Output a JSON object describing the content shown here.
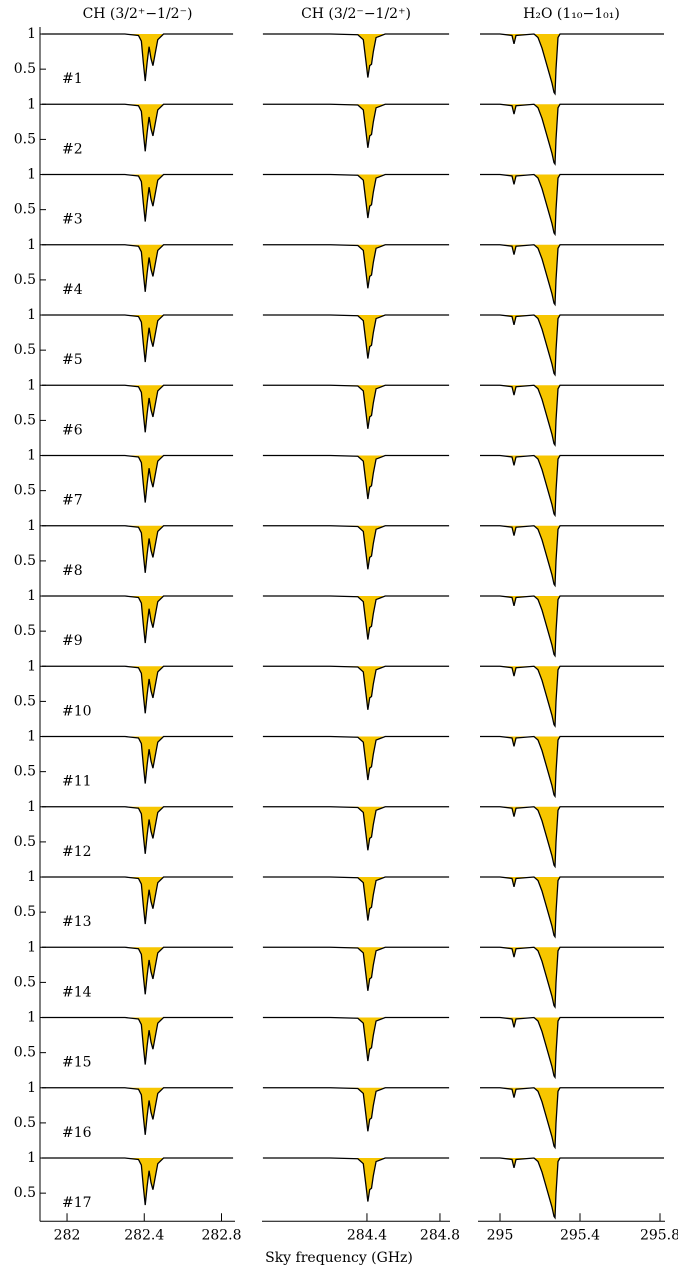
{
  "chart_data": {
    "type": "line",
    "x_label": "Sky frequency (GHz)",
    "line_color": "#000000",
    "fill_color": "#f7c600",
    "ylim": [
      0.1,
      1.1
    ],
    "yticks": [
      0.5,
      1
    ],
    "rows": [
      "#1",
      "#2",
      "#3",
      "#4",
      "#5",
      "#6",
      "#7",
      "#8",
      "#9",
      "#10",
      "#11",
      "#12",
      "#13",
      "#14",
      "#15",
      "#16",
      "#17"
    ],
    "columns": [
      {
        "title": "CH (3/2⁺−1/2⁻)",
        "xlim": [
          281.86,
          282.87
        ],
        "xticks": [
          282,
          282.4,
          282.8
        ],
        "x": [
          281.87,
          282.0,
          282.1,
          282.2,
          282.3,
          282.37,
          282.385,
          282.395,
          282.405,
          282.415,
          282.425,
          282.435,
          282.445,
          282.455,
          282.47,
          282.5,
          282.6,
          282.7,
          282.86
        ],
        "values": [
          1,
          1,
          1,
          1,
          1,
          0.98,
          0.9,
          0.6,
          0.33,
          0.6,
          0.82,
          0.65,
          0.55,
          0.7,
          0.92,
          1,
          1,
          1,
          1
        ]
      },
      {
        "title": "CH (3/2⁻−1/2⁺)",
        "xlim": [
          283.825,
          284.855
        ],
        "xticks": [
          284.4,
          284.8
        ],
        "x": [
          283.83,
          284.0,
          284.2,
          284.35,
          284.38,
          284.395,
          284.405,
          284.415,
          284.425,
          284.435,
          284.45,
          284.5,
          284.6,
          284.7,
          284.85
        ],
        "values": [
          1,
          1,
          1,
          0.99,
          0.92,
          0.6,
          0.38,
          0.55,
          0.57,
          0.75,
          0.95,
          1,
          1,
          1,
          1
        ]
      },
      {
        "title": "H₂O (1₁₀−1₀₁)",
        "xlim": [
          294.89,
          295.825
        ],
        "xticks": [
          295,
          295.4,
          295.8
        ],
        "x": [
          294.9,
          295.0,
          295.06,
          295.07,
          295.08,
          295.17,
          295.19,
          295.21,
          295.23,
          295.25,
          295.26,
          295.27,
          295.275,
          295.28,
          295.29,
          295.3,
          295.4,
          295.6,
          295.82
        ],
        "values": [
          1,
          1,
          0.98,
          0.86,
          0.98,
          1,
          0.95,
          0.8,
          0.6,
          0.4,
          0.3,
          0.17,
          0.15,
          0.5,
          0.95,
          1,
          1,
          1,
          1
        ]
      }
    ]
  }
}
